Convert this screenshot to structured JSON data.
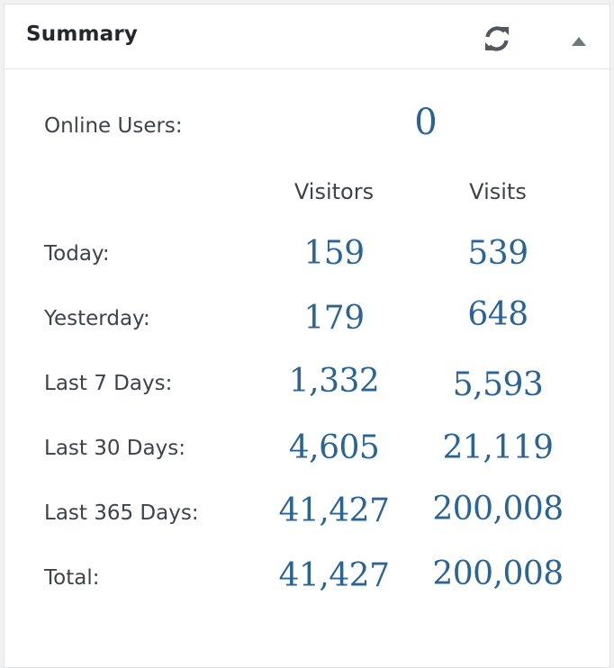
{
  "widget": {
    "title": "Summary"
  },
  "online": {
    "label": "Online Users:",
    "value": "0"
  },
  "columns": {
    "visitors": "Visitors",
    "visits": "Visits"
  },
  "rows": [
    {
      "label": "Today:",
      "visitors": "159",
      "visits": "539"
    },
    {
      "label": "Yesterday:",
      "visitors": "179",
      "visits": "648"
    },
    {
      "label": "Last 7 Days:",
      "visitors": "1,332",
      "visits": "5,593"
    },
    {
      "label": "Last 30 Days:",
      "visitors": "4,605",
      "visits": "21,119"
    },
    {
      "label": "Last 365 Days:",
      "visitors": "41,427",
      "visits": "200,008"
    },
    {
      "label": "Total:",
      "visitors": "41,427",
      "visits": "200,008"
    }
  ],
  "icons": {
    "refresh": "refresh-icon",
    "toggle": "collapse-arrow-icon"
  },
  "colors": {
    "number": "#2a6496",
    "label": "#3c434a",
    "title": "#23282d"
  }
}
